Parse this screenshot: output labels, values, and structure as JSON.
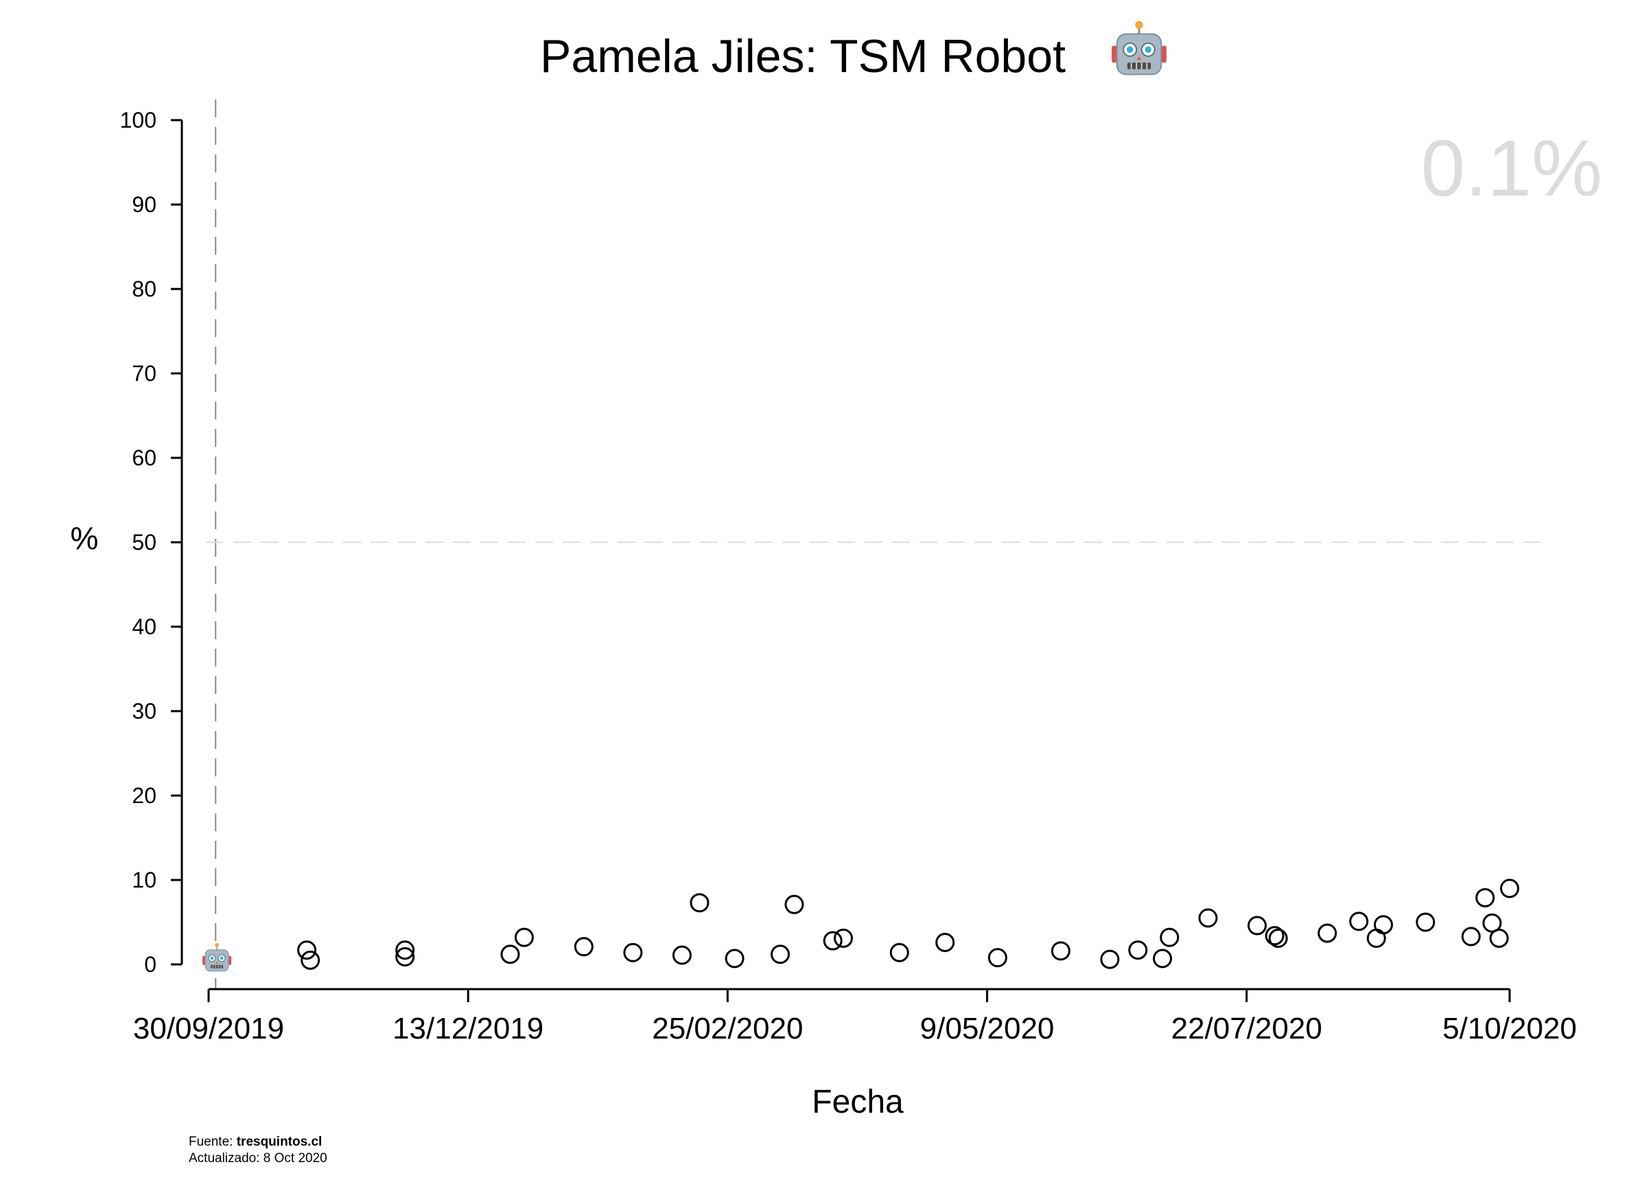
{
  "chart_data": {
    "type": "scatter",
    "title": "Pamela Jiles: TSM Robot",
    "title_icon": "robot-face-icon",
    "xlabel": "Fecha",
    "ylabel": "%",
    "ylim": [
      0,
      100
    ],
    "xlim": [
      "2019-09-30",
      "2020-10-05"
    ],
    "y_ticks": [
      0,
      10,
      20,
      30,
      40,
      50,
      60,
      70,
      80,
      90,
      100
    ],
    "x_ticks": [
      {
        "date": "2019-09-30",
        "label": "30/09/2019"
      },
      {
        "date": "2019-12-13",
        "label": "13/12/2019"
      },
      {
        "date": "2020-02-25",
        "label": "25/02/2020"
      },
      {
        "date": "2020-05-09",
        "label": "9/05/2020"
      },
      {
        "date": "2020-07-22",
        "label": "22/07/2020"
      },
      {
        "date": "2020-10-05",
        "label": "5/10/2020"
      }
    ],
    "reference_lines": {
      "vertical_dashed_date": "2019-10-02",
      "horizontal_dashed_value": 50
    },
    "latest_value_label": "0.1%",
    "start_marker": {
      "date": "2019-10-01",
      "value": 0.1,
      "icon": "robot-face-icon"
    },
    "grid": false,
    "points": [
      {
        "x": "2019-10-28",
        "y": 1.7
      },
      {
        "x": "2019-10-29",
        "y": 0.5
      },
      {
        "x": "2019-11-25",
        "y": 1.7
      },
      {
        "x": "2019-11-25",
        "y": 0.9
      },
      {
        "x": "2019-12-25",
        "y": 1.2
      },
      {
        "x": "2019-12-29",
        "y": 3.2
      },
      {
        "x": "2020-01-15",
        "y": 2.1
      },
      {
        "x": "2020-01-29",
        "y": 1.4
      },
      {
        "x": "2020-02-12",
        "y": 1.1
      },
      {
        "x": "2020-02-17",
        "y": 7.3
      },
      {
        "x": "2020-02-27",
        "y": 0.7
      },
      {
        "x": "2020-03-11",
        "y": 1.2
      },
      {
        "x": "2020-03-15",
        "y": 7.1
      },
      {
        "x": "2020-03-26",
        "y": 2.8
      },
      {
        "x": "2020-03-29",
        "y": 3.1
      },
      {
        "x": "2020-04-14",
        "y": 1.4
      },
      {
        "x": "2020-04-27",
        "y": 2.6
      },
      {
        "x": "2020-05-12",
        "y": 0.8
      },
      {
        "x": "2020-05-30",
        "y": 1.6
      },
      {
        "x": "2020-06-13",
        "y": 0.6
      },
      {
        "x": "2020-06-21",
        "y": 1.7
      },
      {
        "x": "2020-06-28",
        "y": 0.7
      },
      {
        "x": "2020-06-30",
        "y": 3.2
      },
      {
        "x": "2020-07-11",
        "y": 5.5
      },
      {
        "x": "2020-07-25",
        "y": 4.6
      },
      {
        "x": "2020-07-30",
        "y": 3.4
      },
      {
        "x": "2020-07-31",
        "y": 3.1
      },
      {
        "x": "2020-08-14",
        "y": 3.7
      },
      {
        "x": "2020-08-23",
        "y": 5.1
      },
      {
        "x": "2020-08-28",
        "y": 3.1
      },
      {
        "x": "2020-08-30",
        "y": 4.7
      },
      {
        "x": "2020-09-11",
        "y": 5.0
      },
      {
        "x": "2020-09-24",
        "y": 3.3
      },
      {
        "x": "2020-09-28",
        "y": 7.9
      },
      {
        "x": "2020-09-30",
        "y": 4.9
      },
      {
        "x": "2020-10-02",
        "y": 3.1
      },
      {
        "x": "2020-10-05",
        "y": 9.0
      }
    ]
  },
  "footer": {
    "source_prefix": "Fuente: ",
    "source_name": "tresquintos.cl",
    "updated": "Actualizado: 8 Oct 2020"
  }
}
